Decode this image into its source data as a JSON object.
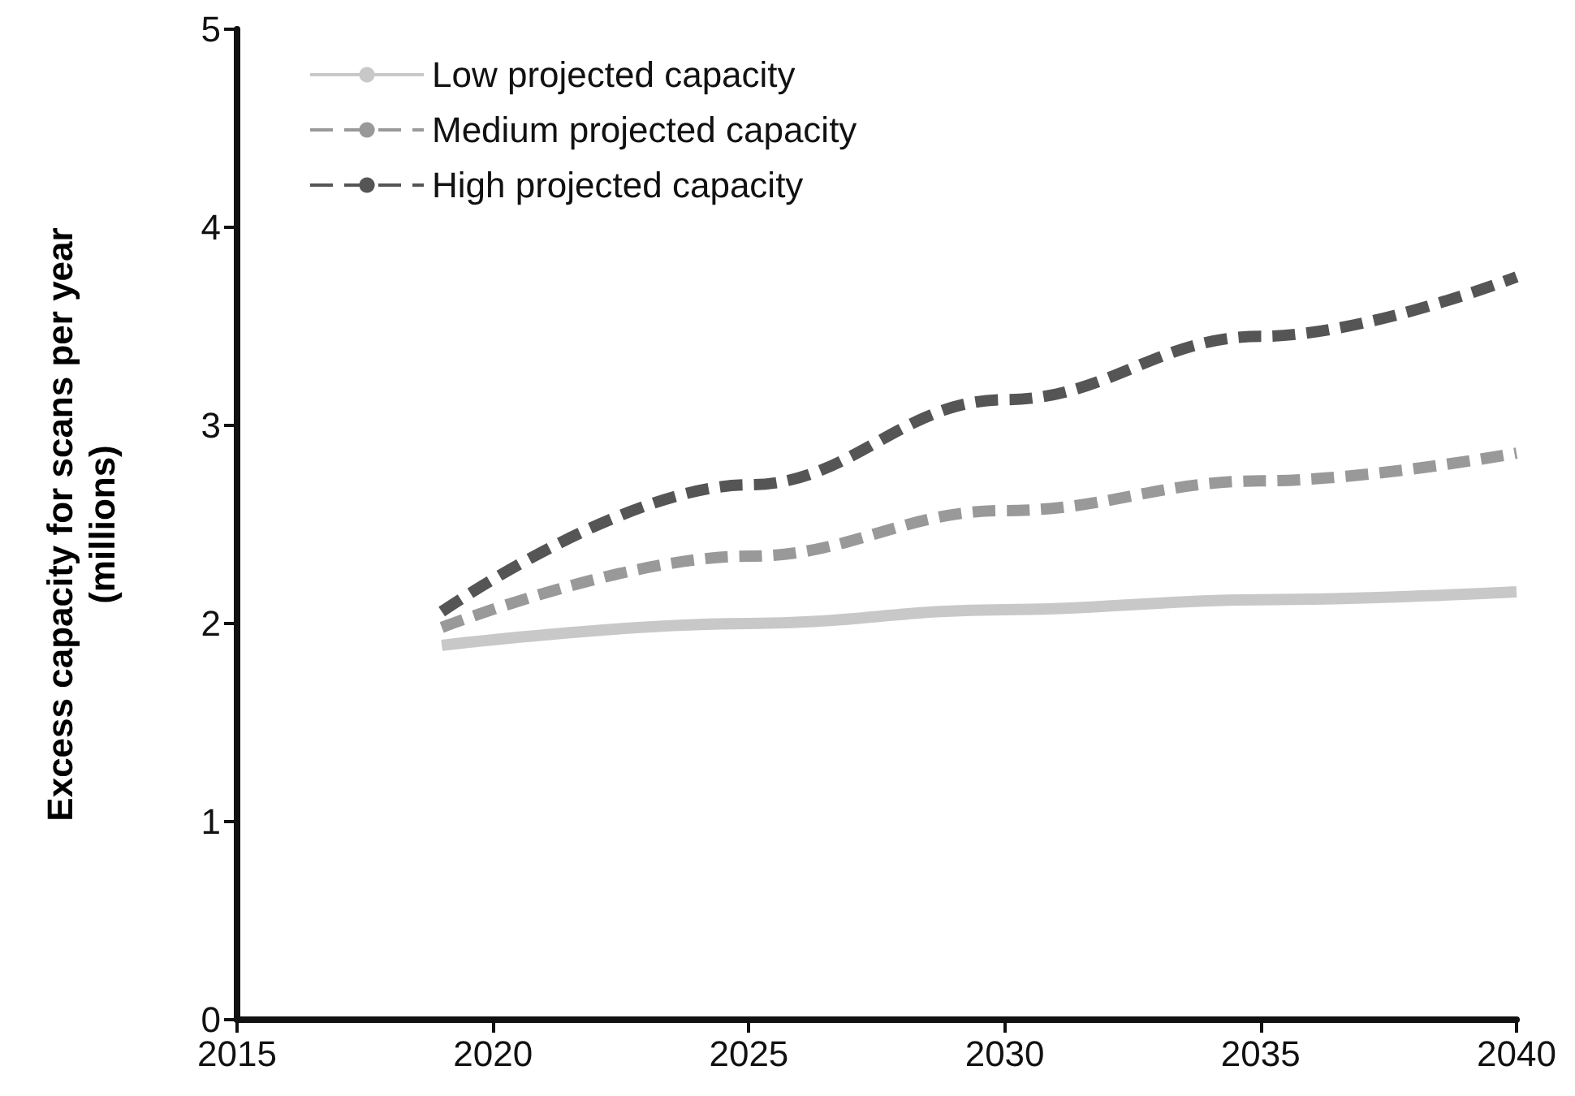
{
  "chart_data": {
    "type": "line",
    "ylabel": "Excess capacity for scans per year\n(millions)",
    "x": [
      2019,
      2025,
      2030,
      2035,
      2040
    ],
    "series": [
      {
        "name": "Low projected capacity",
        "color": "#c8c8c8",
        "line_style": "solid",
        "values": [
          1.89,
          2.0,
          2.07,
          2.12,
          2.16
        ]
      },
      {
        "name": "Medium projected capacity",
        "color": "#999999",
        "line_style": "dashed",
        "values": [
          1.98,
          2.34,
          2.57,
          2.72,
          2.86
        ]
      },
      {
        "name": "High projected capacity",
        "color": "#555555",
        "line_style": "dashed",
        "values": [
          2.06,
          2.7,
          3.13,
          3.45,
          3.75
        ]
      }
    ],
    "xlim": [
      2015,
      2040
    ],
    "xticks": [
      2015,
      2020,
      2025,
      2030,
      2035,
      2040
    ],
    "ylim": [
      0,
      5
    ],
    "yticks": [
      0,
      1,
      2,
      3,
      4,
      5
    ],
    "grid": false,
    "legend": "top left",
    "marker": "none"
  }
}
